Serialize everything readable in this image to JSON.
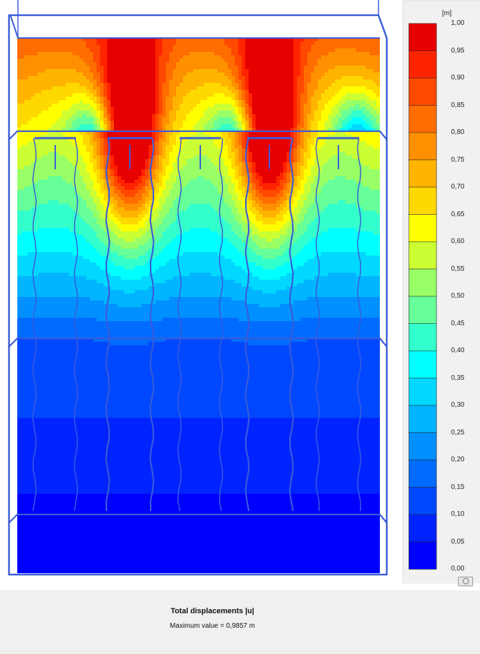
{
  "chart_data": {
    "type": "heatmap",
    "title": "Total displacements |u|",
    "quantity": "Total displacements |u|",
    "unit": "[m]",
    "max_label": "Maximum value",
    "max_text": "0,9857 m",
    "max_value": 0.9857,
    "range": [
      0.0,
      1.0
    ],
    "step": 0.05,
    "legend_ticks": [
      "1,00",
      "0,95",
      "0,90",
      "0,85",
      "0,80",
      "0,75",
      "0,70",
      "0,65",
      "0,60",
      "0,55",
      "0,50",
      "0,45",
      "0,40",
      "0,35",
      "0,30",
      "0,25",
      "0,20",
      "0,15",
      "0,10",
      "0,05",
      "0,00"
    ],
    "legend_colors": [
      "#e60000",
      "#ff2400",
      "#ff4800",
      "#ff6c00",
      "#ff9000",
      "#ffb400",
      "#ffd800",
      "#ffff00",
      "#ccff33",
      "#99ff66",
      "#66ff99",
      "#33ffcc",
      "#00ffff",
      "#00d8ff",
      "#00b4ff",
      "#0090ff",
      "#006cff",
      "#0048ff",
      "#0024ff",
      "#0000ff"
    ],
    "field_description": "Displacement decreasing with depth; maxima near 0.99 m above the two inner columns at the upper excavation level",
    "peak_locations": [
      "column-2-top",
      "column-4-top"
    ]
  },
  "colors": {
    "mesh_outline": "#3a5bd9",
    "panel_bg": "#f1f1f1",
    "footer_bg": "#f0f0f0"
  },
  "ui": {
    "snapshot_icon": "camera-icon"
  }
}
